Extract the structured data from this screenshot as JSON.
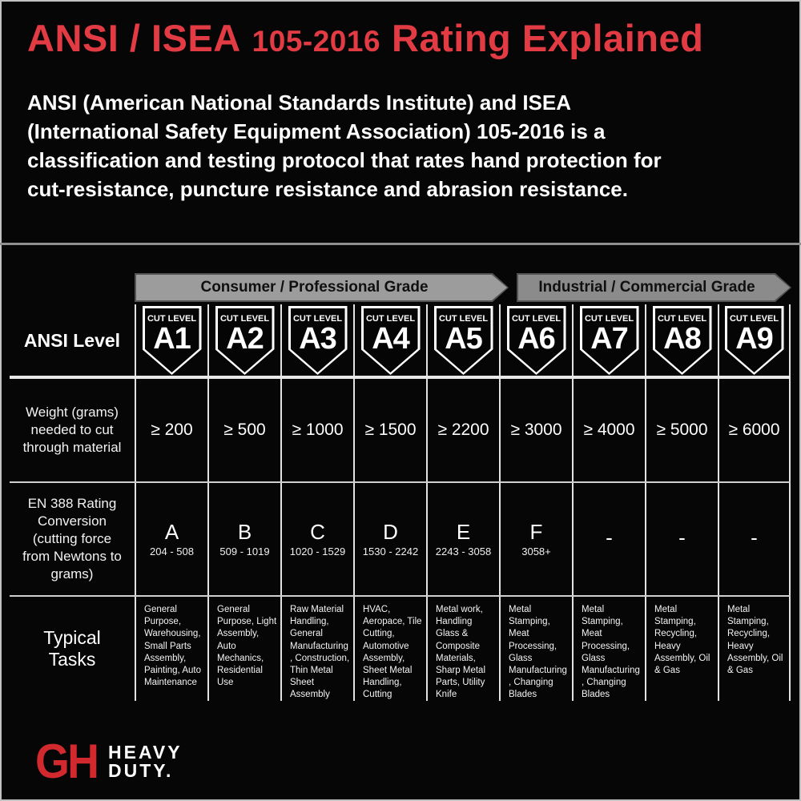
{
  "colors": {
    "background": "#060606",
    "accent_red": "#e23b43",
    "logo_red": "#d2292f",
    "banner_consumer_gray": "#9c9c9c",
    "banner_industrial_gray": "#8b8b8b",
    "grid_line_white": "#e2e2e2"
  },
  "header": {
    "title_seg1": "ANSI / ISEA",
    "title_seg2": "105-2016",
    "title_seg3": "Rating Explained",
    "intro_lines": [
      "ANSI (American National Standards Institute) and ISEA",
      "(International Safety Equipment Association) 105-2016 is a",
      "classification and testing protocol that rates hand protection for",
      "cut-resistance, puncture resistance and abrasion resistance."
    ]
  },
  "grade_banners": [
    {
      "label": "Consumer / Professional Grade"
    },
    {
      "label": "Industrial / Commercial Grade"
    }
  ],
  "table": {
    "row_labels": {
      "ansi_level": "ANSI Level",
      "weight": "Weight (grams) needed to cut through material",
      "en388": "EN 388 Rating Conversion (cutting force from Newtons to grams)",
      "tasks": "Typical Tasks"
    },
    "cut_level_caption": "CUT LEVEL",
    "levels": [
      "A1",
      "A2",
      "A3",
      "A4",
      "A5",
      "A6",
      "A7",
      "A8",
      "A9"
    ],
    "weights": [
      "≥ 200",
      "≥ 500",
      "≥ 1000",
      "≥ 1500",
      "≥ 2200",
      "≥ 3000",
      "≥ 4000",
      "≥ 5000",
      "≥ 6000"
    ],
    "en388_letters": [
      "A",
      "B",
      "C",
      "D",
      "E",
      "F",
      "-",
      "-",
      "-"
    ],
    "en388_ranges": [
      "204 - 508",
      "509 - 1019",
      "1020 - 1529",
      "1530 - 2242",
      "2243 - 3058",
      "3058+",
      "",
      "",
      ""
    ],
    "tasks": [
      "General Purpose, Warehousing, Small Parts Assembly, Painting, Auto Maintenance",
      "General Purpose, Light Assembly, Auto Mechanics, Residential Use",
      "Raw Material Handling, General Manufacturing , Construction, Thin Metal Sheet Assembly",
      "HVAC, Aeropace, Tile Cutting, Automotive Assembly, Sheet Metal Handling, Cutting",
      "Metal work, Handling Glass & Composite Materials, Sharp Metal Parts, Utility Knife",
      "Metal Stamping, Meat Processing, Glass Manufacturing , Changing Blades",
      "Metal Stamping, Meat Processing, Glass Manufacturing , Changing Blades",
      "Metal Stamping, Recycling, Heavy Assembly, Oil & Gas",
      "Metal Stamping, Recycling, Heavy Assembly, Oil & Gas"
    ]
  },
  "logo": {
    "monogram": "GH",
    "line1": "HEAVY",
    "line2": "DUTY."
  }
}
